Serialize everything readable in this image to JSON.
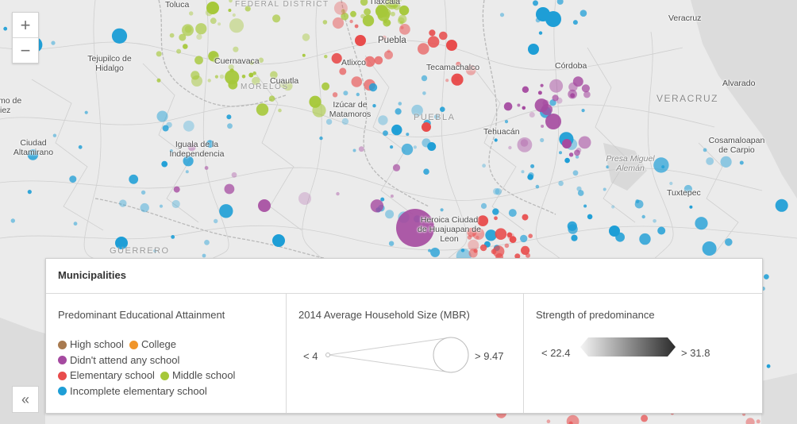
{
  "colors": {
    "high_school": "#a87a4f",
    "college": "#f0952a",
    "no_school": "#a54aa0",
    "elementary": "#e84c4c",
    "middle": "#a6c83a",
    "incomplete_elementary": "#1e9ed6"
  },
  "map": {
    "state_labels": [
      "FEDERAL DISTRICT",
      "MORELOS",
      "PUEBLA",
      "VERACRUZ",
      "GUERRERO"
    ],
    "cities": [
      "Toluca",
      "Tlaxcala",
      "Veracruz",
      "Puebla",
      "Tejupilco de Hidalgo",
      "Cuernavaca",
      "Atlixco",
      "Tecamachalco",
      "Córdoba",
      "Cuautla",
      "Alvarado",
      "Izúcar de Matamoros",
      "Tehuacán",
      "Ciudad Altamirano",
      "Iguala de la Independencia",
      "Cosamaloapan de Carpio",
      "Presa Miguel Alemán",
      "Tuxtepec",
      "Heroica Ciudad de Huajuapan de Leon",
      "mo de",
      "iez"
    ]
  },
  "controls": {
    "zoom_in": "+",
    "zoom_out": "−",
    "collapse": "«"
  },
  "legend": {
    "title": "Municipalities",
    "categories": {
      "title": "Predominant Educational Attainment",
      "items": [
        {
          "label": "High school",
          "color": "#a87a4f"
        },
        {
          "label": "College",
          "color": "#f0952a"
        },
        {
          "label": "Didn't attend any school",
          "color": "#a54aa0"
        },
        {
          "label": "Elementary school",
          "color": "#e84c4c"
        },
        {
          "label": "Middle school",
          "color": "#a6c83a"
        },
        {
          "label": "Incomplete elementary school",
          "color": "#1e9ed6"
        }
      ]
    },
    "size": {
      "title": "2014 Average Household Size (MBR)",
      "min_label": "< 4",
      "max_label": "> 9.47"
    },
    "strength": {
      "title": "Strength of predominance",
      "min_label": "< 22.4",
      "max_label": "> 31.8"
    }
  }
}
